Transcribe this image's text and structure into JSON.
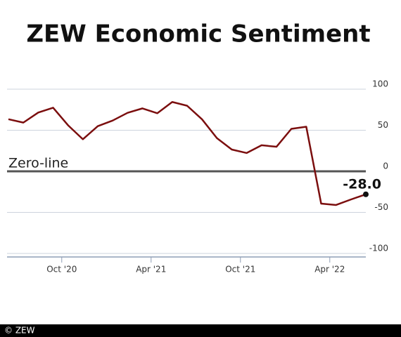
{
  "chart_data": {
    "type": "line",
    "title": "ZEW Economic Sentiment",
    "annotation": "Zero-line",
    "credit": "© ZEW",
    "categories": [
      null,
      null,
      null,
      null,
      "Oct '20",
      null,
      null,
      null,
      null,
      null,
      "Apr '21",
      null,
      null,
      null,
      null,
      null,
      "Oct '21",
      null,
      null,
      null,
      null,
      null,
      "Apr '22",
      null,
      null
    ],
    "series": [
      {
        "name": "ZEW Economic Sentiment",
        "color": "#7b0e0e",
        "values": [
          63.4,
          59.3,
          71.5,
          77.4,
          56.1,
          39.0,
          55.0,
          61.8,
          71.2,
          76.6,
          70.7,
          84.4,
          79.8,
          63.3,
          40.4,
          26.5,
          22.3,
          31.7,
          29.9,
          51.7,
          54.3,
          -39.3,
          -41.0,
          -34.3,
          -28.0
        ],
        "value_labels": [
          null,
          null,
          null,
          null,
          null,
          null,
          null,
          null,
          null,
          null,
          null,
          null,
          null,
          null,
          null,
          null,
          null,
          null,
          null,
          null,
          null,
          null,
          null,
          null,
          "-28.0"
        ]
      }
    ],
    "ylim": [
      -100,
      100
    ],
    "yticks": [
      100,
      50,
      0,
      -50,
      -100
    ],
    "grid": true
  }
}
